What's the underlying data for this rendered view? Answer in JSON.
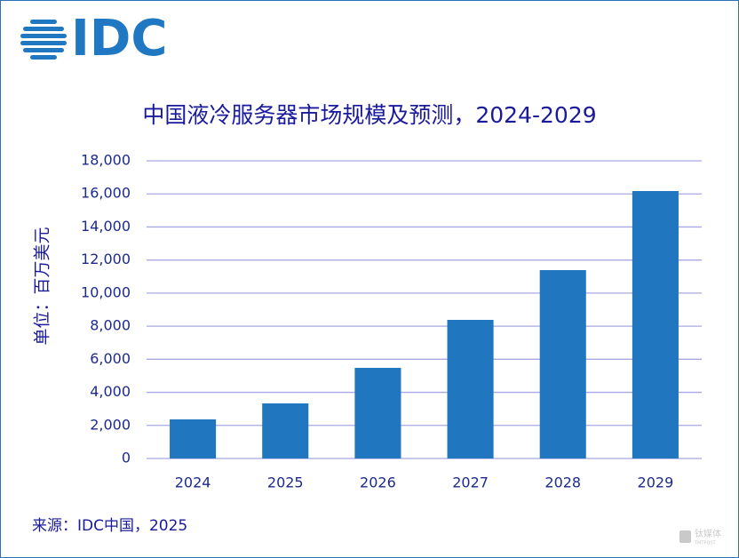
{
  "logo": "IDC",
  "chart_data": {
    "type": "bar",
    "title": "中国液冷服务器市场规模及预测，2024-2029",
    "y_label": "单位：百万美元",
    "categories": [
      "2024",
      "2025",
      "2026",
      "2027",
      "2028",
      "2029"
    ],
    "values": [
      2364,
      3331,
      5481,
      8382,
      11391,
      16173
    ],
    "color": "#2177bf",
    "ylim": [
      0,
      18000
    ],
    "yticks": [
      0,
      {
        "value": 2000,
        "label": "2,000"
      },
      {
        "value": 4000,
        "label": "4,000"
      },
      {
        "value": 6000,
        "label": "6,000"
      },
      {
        "value": 8000,
        "label": "8,000"
      },
      {
        "value": 10000,
        "label": "10,000"
      },
      {
        "value": 12000,
        "label": "12,000"
      },
      {
        "value": 14000,
        "label": "14,000"
      },
      {
        "value": 16000,
        "label": "16,000"
      },
      {
        "value": 18000,
        "label": "18,000"
      }
    ],
    "grid": true,
    "source": "来源：IDC中国，2025"
  },
  "watermark": {
    "name": "钛媒体",
    "sub": "TMTPOST"
  }
}
